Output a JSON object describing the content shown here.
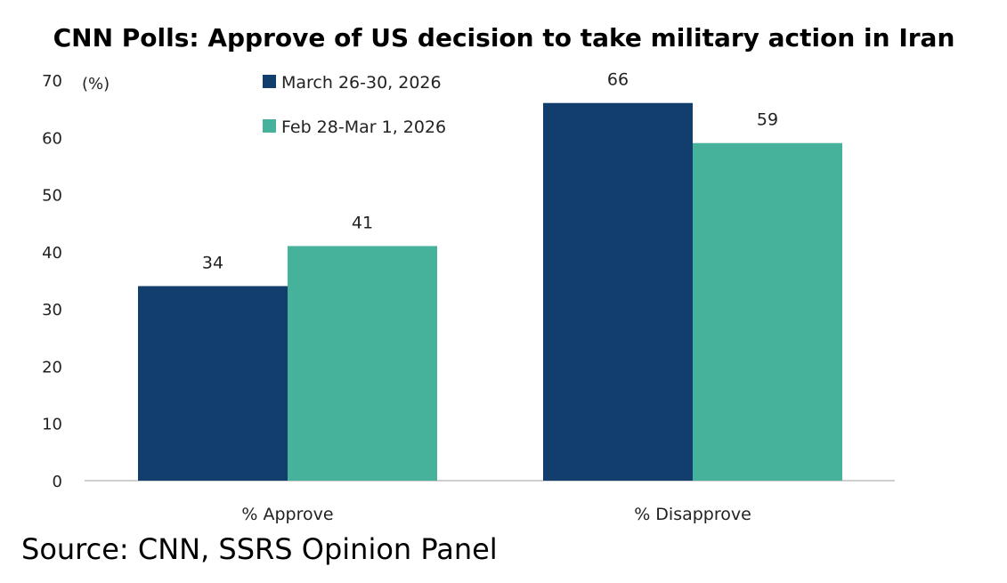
{
  "chart_data": {
    "type": "bar",
    "title": "CNN Polls: Approve of US decision to take military action in Iran",
    "ylabel": "(%)",
    "xlabel": "",
    "categories": [
      "% Approve",
      "% Disapprove"
    ],
    "series": [
      {
        "name": "March 26-30, 2026",
        "values": [
          34,
          66
        ],
        "color": "#123E6E"
      },
      {
        "name": "Feb 28-Mar 1, 2026",
        "values": [
          41,
          59
        ],
        "color": "#47B29C"
      }
    ],
    "ylim": [
      0,
      70
    ],
    "yticks": [
      0,
      10,
      20,
      30,
      40,
      50,
      60,
      70
    ],
    "grid": false,
    "legend_position": "top-center",
    "source": "Source: CNN, SSRS Opinion Panel"
  }
}
